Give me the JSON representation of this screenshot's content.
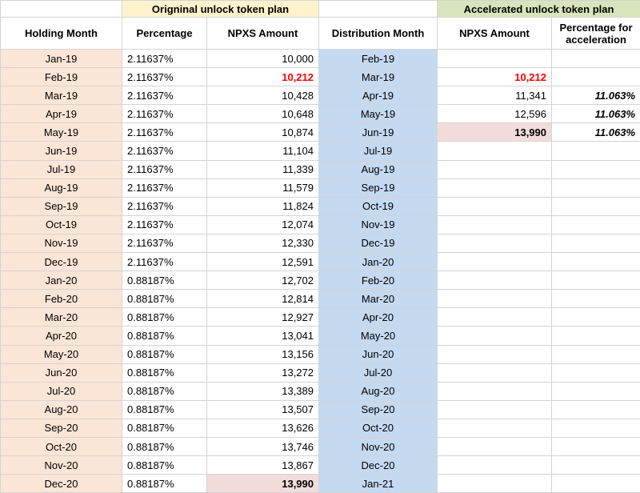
{
  "groups": {
    "original": "Origninal unlock token plan",
    "accelerated": "Accelerated unlock token plan"
  },
  "headers": {
    "holding_month": "Holding Month",
    "percentage": "Percentage",
    "npxs_amount": "NPXS Amount",
    "distribution_month": "Distribution Month",
    "acc_npxs_amount": "NPXS Amount",
    "acc_percentage": "Percentage for acceleration"
  },
  "colors": {
    "holding_col": "#fbe5d6",
    "distribution_col": "#c5d9f1",
    "original_header": "#fff2cc",
    "accelerated_header": "#d8e4bc",
    "highlight_red": "#ff0000",
    "highlight_pink": "#f2dcdb"
  },
  "rows": [
    {
      "hold": "Jan-19",
      "pct": "2.11637%",
      "amt": "10,000",
      "dist": "Feb-19",
      "acc_amt": "",
      "acc_pct": ""
    },
    {
      "hold": "Feb-19",
      "pct": "2.11637%",
      "amt": "10,212",
      "dist": "Mar-19",
      "acc_amt": "10,212",
      "acc_pct": ""
    },
    {
      "hold": "Mar-19",
      "pct": "2.11637%",
      "amt": "10,428",
      "dist": "Apr-19",
      "acc_amt": "11,341",
      "acc_pct": "11.063%"
    },
    {
      "hold": "Apr-19",
      "pct": "2.11637%",
      "amt": "10,648",
      "dist": "May-19",
      "acc_amt": "12,596",
      "acc_pct": "11.063%"
    },
    {
      "hold": "May-19",
      "pct": "2.11637%",
      "amt": "10,874",
      "dist": "Jun-19",
      "acc_amt": "13,990",
      "acc_pct": "11.063%"
    },
    {
      "hold": "Jun-19",
      "pct": "2.11637%",
      "amt": "11,104",
      "dist": "Jul-19",
      "acc_amt": "",
      "acc_pct": ""
    },
    {
      "hold": "Jul-19",
      "pct": "2.11637%",
      "amt": "11,339",
      "dist": "Aug-19",
      "acc_amt": "",
      "acc_pct": ""
    },
    {
      "hold": "Aug-19",
      "pct": "2.11637%",
      "amt": "11,579",
      "dist": "Sep-19",
      "acc_amt": "",
      "acc_pct": ""
    },
    {
      "hold": "Sep-19",
      "pct": "2.11637%",
      "amt": "11,824",
      "dist": "Oct-19",
      "acc_amt": "",
      "acc_pct": ""
    },
    {
      "hold": "Oct-19",
      "pct": "2.11637%",
      "amt": "12,074",
      "dist": "Nov-19",
      "acc_amt": "",
      "acc_pct": ""
    },
    {
      "hold": "Nov-19",
      "pct": "2.11637%",
      "amt": "12,330",
      "dist": "Dec-19",
      "acc_amt": "",
      "acc_pct": ""
    },
    {
      "hold": "Dec-19",
      "pct": "2.11637%",
      "amt": "12,591",
      "dist": "Jan-20",
      "acc_amt": "",
      "acc_pct": ""
    },
    {
      "hold": "Jan-20",
      "pct": "0.88187%",
      "amt": "12,702",
      "dist": "Feb-20",
      "acc_amt": "",
      "acc_pct": ""
    },
    {
      "hold": "Feb-20",
      "pct": "0.88187%",
      "amt": "12,814",
      "dist": "Mar-20",
      "acc_amt": "",
      "acc_pct": ""
    },
    {
      "hold": "Mar-20",
      "pct": "0.88187%",
      "amt": "12,927",
      "dist": "Apr-20",
      "acc_amt": "",
      "acc_pct": ""
    },
    {
      "hold": "Apr-20",
      "pct": "0.88187%",
      "amt": "13,041",
      "dist": "May-20",
      "acc_amt": "",
      "acc_pct": ""
    },
    {
      "hold": "May-20",
      "pct": "0.88187%",
      "amt": "13,156",
      "dist": "Jun-20",
      "acc_amt": "",
      "acc_pct": ""
    },
    {
      "hold": "Jun-20",
      "pct": "0.88187%",
      "amt": "13,272",
      "dist": "Jul-20",
      "acc_amt": "",
      "acc_pct": ""
    },
    {
      "hold": "Jul-20",
      "pct": "0.88187%",
      "amt": "13,389",
      "dist": "Aug-20",
      "acc_amt": "",
      "acc_pct": ""
    },
    {
      "hold": "Aug-20",
      "pct": "0.88187%",
      "amt": "13,507",
      "dist": "Sep-20",
      "acc_amt": "",
      "acc_pct": ""
    },
    {
      "hold": "Sep-20",
      "pct": "0.88187%",
      "amt": "13,626",
      "dist": "Oct-20",
      "acc_amt": "",
      "acc_pct": ""
    },
    {
      "hold": "Oct-20",
      "pct": "0.88187%",
      "amt": "13,746",
      "dist": "Nov-20",
      "acc_amt": "",
      "acc_pct": ""
    },
    {
      "hold": "Nov-20",
      "pct": "0.88187%",
      "amt": "13,867",
      "dist": "Dec-20",
      "acc_amt": "",
      "acc_pct": ""
    },
    {
      "hold": "Dec-20",
      "pct": "0.88187%",
      "amt": "13,990",
      "dist": "Jan-21",
      "acc_amt": "",
      "acc_pct": ""
    }
  ]
}
